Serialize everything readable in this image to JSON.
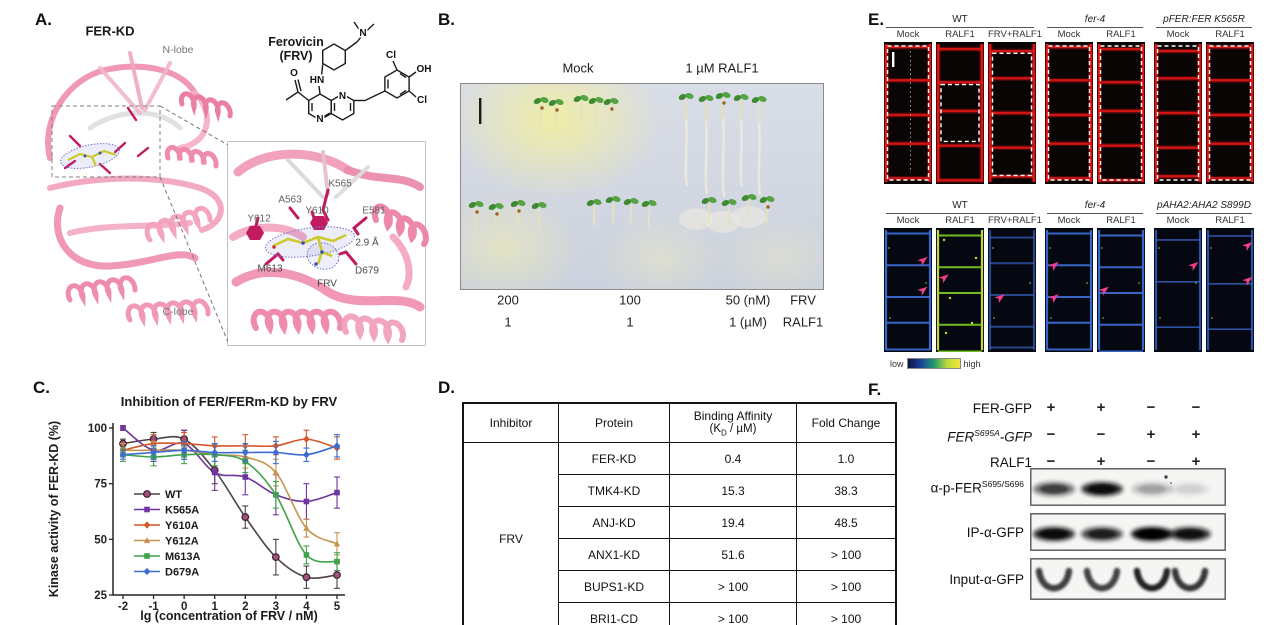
{
  "panels": {
    "A": {
      "label": "A.",
      "structure_title": "FER-KD",
      "n_lobe": "N-lobe",
      "c_lobe": "C-lobe",
      "molecule": {
        "name_line1": "Ferovicin",
        "name_line2": "(FRV)",
        "atoms": {
          "o": "O",
          "hn": "HN",
          "n_amine": "N",
          "cl_top": "Cl",
          "oh": "OH",
          "cl_bottom": "Cl",
          "n_ring_top": "N",
          "n_ring_bottom": "N"
        }
      },
      "inset": {
        "residues": [
          "K565",
          "A563",
          "Y610",
          "E581",
          "Y612",
          "M613",
          "D679"
        ],
        "ligand_label": "FRV",
        "distance_label": "2.9 Å"
      }
    },
    "B": {
      "label": "B.",
      "col_headers": [
        "Mock",
        "1 µM RALF1"
      ],
      "dose_rows": [
        {
          "values": [
            "200",
            "100",
            "50 (nM)"
          ],
          "name": "FRV"
        },
        {
          "values": [
            "1",
            "1",
            "1 (µM)"
          ],
          "name": "RALF1"
        }
      ]
    },
    "C": {
      "label": "C."
    },
    "D": {
      "label": "D.",
      "table": {
        "headers": [
          "Inhibitor",
          "Protein",
          "Binding Affinity",
          "Fold Change"
        ],
        "affinity_unit": {
          "pre": "(K",
          "sub": "D",
          "post": " / µM)"
        },
        "inhibitor": "FRV",
        "rows": [
          [
            "FER-KD",
            "0.4",
            "1.0"
          ],
          [
            "TMK4-KD",
            "15.3",
            "38.3"
          ],
          [
            "ANJ-KD",
            "19.4",
            "48.5"
          ],
          [
            "ANX1-KD",
            "51.6",
            "> 100"
          ],
          [
            "BUPS1-KD",
            "> 100",
            "> 100"
          ],
          [
            "BRI1-CD",
            "> 100",
            "> 100"
          ]
        ]
      }
    },
    "E": {
      "label": "E.",
      "top": {
        "groups": [
          {
            "name": "WT",
            "italic": false,
            "cols": [
              "Mock",
              "RALF1",
              "FRV+RALF1"
            ]
          },
          {
            "name": "fer-4",
            "italic": true,
            "cols": [
              "Mock",
              "RALF1"
            ]
          },
          {
            "name": "pFER:FER K565R",
            "italic": true,
            "cols": [
              "Mock",
              "RALF1"
            ]
          }
        ]
      },
      "bottom": {
        "groups": [
          {
            "name": "WT",
            "italic": false,
            "cols": [
              "Mock",
              "RALF1",
              "FRV+RALF1"
            ]
          },
          {
            "name": "fer-4",
            "italic": true,
            "cols": [
              "Mock",
              "RALF1"
            ]
          },
          {
            "name": "pAHA2:AHA2 S899D",
            "italic": true,
            "cols": [
              "Mock",
              "RALF1"
            ]
          }
        ]
      },
      "colorbar": {
        "low": "low",
        "high": "high"
      }
    },
    "F": {
      "label": "F.",
      "conditions": [
        {
          "pre": "FER-GFP",
          "sup": "",
          "post": "",
          "italic": false,
          "signs": [
            "+",
            "+",
            "−",
            "−"
          ]
        },
        {
          "pre": "FER",
          "sup": "S695A",
          "post": "-GFP",
          "italic": true,
          "signs": [
            "−",
            "−",
            "+",
            "+"
          ]
        },
        {
          "pre": "RALF1",
          "sup": "",
          "post": "",
          "italic": false,
          "signs": [
            "−",
            "+",
            "−",
            "+"
          ]
        }
      ],
      "blots": [
        {
          "pre": "α-p-FER",
          "sup": "S695/S696",
          "post": "",
          "style": "band",
          "bands": [
            0.55,
            0.85,
            0.2,
            0.08
          ],
          "speck": true
        },
        {
          "pre": "IP-α-GFP",
          "sup": "",
          "post": "",
          "style": "band",
          "bands": [
            0.88,
            0.72,
            1.0,
            0.82
          ],
          "speck": false
        },
        {
          "pre": "Input-α-GFP",
          "sup": "",
          "post": "",
          "style": "smile",
          "bands": [
            0.82,
            0.8,
            0.95,
            0.85
          ],
          "speck": false
        }
      ]
    }
  },
  "chart_data": {
    "type": "line",
    "title": "Inhibition of FER/FERm-KD by FRV",
    "xlabel": "lg (concentration of FRV / nM)",
    "ylabel": "Kinase activity of FER-KD (%)",
    "x": [
      -2,
      -1,
      0,
      1,
      2,
      3,
      4,
      5
    ],
    "xlim": [
      -2.5,
      5.5
    ],
    "ylim": [
      25,
      103
    ],
    "yticks": [
      25,
      50,
      75,
      100
    ],
    "grid": false,
    "legend_position": "left-middle",
    "series": [
      {
        "name": "WT",
        "color": "#4b4248",
        "marker": "circle",
        "values": [
          93,
          95,
          95,
          81,
          60,
          42,
          33,
          34
        ],
        "err": [
          2,
          3,
          4,
          6,
          5,
          8,
          5,
          6
        ]
      },
      {
        "name": "K565A",
        "color": "#6f35a0",
        "marker": "square",
        "values": [
          100,
          90,
          93,
          80,
          78,
          70,
          67,
          71
        ],
        "err": [
          1,
          5,
          6,
          8,
          8,
          9,
          8,
          7
        ]
      },
      {
        "name": "Y610A",
        "color": "#d4562c",
        "marker": "diamond",
        "values": [
          90,
          93,
          93,
          92,
          92,
          92,
          95,
          91
        ],
        "err": [
          3,
          4,
          5,
          4,
          5,
          4,
          4,
          5
        ]
      },
      {
        "name": "Y612A",
        "color": "#c6934f",
        "marker": "triangle",
        "values": [
          90,
          90,
          90,
          88,
          87,
          80,
          55,
          48
        ],
        "err": [
          3,
          4,
          4,
          5,
          5,
          6,
          4,
          5
        ]
      },
      {
        "name": "M613A",
        "color": "#3fa24b",
        "marker": "square",
        "values": [
          88,
          87,
          88,
          88,
          85,
          70,
          43,
          40
        ],
        "err": [
          3,
          4,
          4,
          5,
          5,
          6,
          4,
          4
        ]
      },
      {
        "name": "D679A",
        "color": "#3b6cd2",
        "marker": "diamond",
        "values": [
          88,
          89,
          90,
          89,
          89,
          89,
          88,
          92
        ],
        "err": [
          2,
          3,
          4,
          4,
          4,
          5,
          3,
          5
        ]
      }
    ]
  }
}
